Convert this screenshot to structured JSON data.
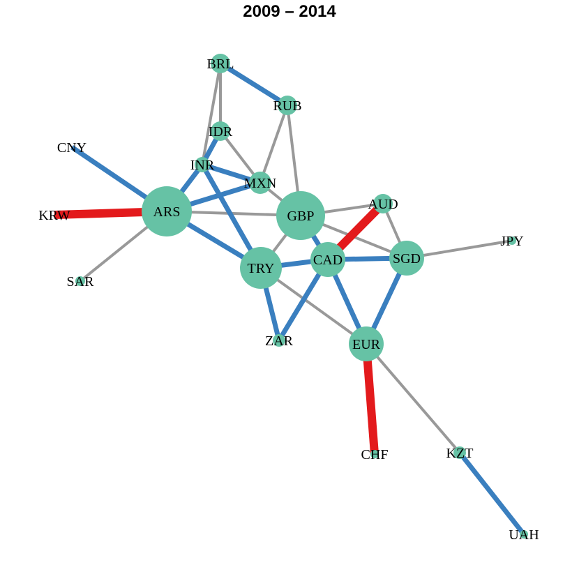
{
  "title": "2009 – 2014",
  "colors": {
    "node": "#66c2a5",
    "edge_neutral": "#999999",
    "edge_blue": "#3a7fbf",
    "edge_red": "#e31a1c",
    "label": "#000000"
  },
  "nodes": [
    {
      "id": "BRL",
      "label": "BRL"
    },
    {
      "id": "RUB",
      "label": "RUB"
    },
    {
      "id": "IDR",
      "label": "IDR"
    },
    {
      "id": "CNY",
      "label": "CNY"
    },
    {
      "id": "INR",
      "label": "INR"
    },
    {
      "id": "MXN",
      "label": "MXN"
    },
    {
      "id": "KRW",
      "label": "KRW"
    },
    {
      "id": "ARS",
      "label": "ARS"
    },
    {
      "id": "GBP",
      "label": "GBP"
    },
    {
      "id": "AUD",
      "label": "AUD"
    },
    {
      "id": "JPY",
      "label": "JPY"
    },
    {
      "id": "SAR",
      "label": "SAR"
    },
    {
      "id": "TRY",
      "label": "TRY"
    },
    {
      "id": "CAD",
      "label": "CAD"
    },
    {
      "id": "SGD",
      "label": "SGD"
    },
    {
      "id": "ZAR",
      "label": "ZAR"
    },
    {
      "id": "EUR",
      "label": "EUR"
    },
    {
      "id": "CHF",
      "label": "CHF"
    },
    {
      "id": "KZT",
      "label": "KZT"
    },
    {
      "id": "UAH",
      "label": "UAH"
    }
  ],
  "edges": [
    {
      "source": "BRL",
      "target": "RUB",
      "type": "blue"
    },
    {
      "source": "BRL",
      "target": "IDR",
      "type": "neutral"
    },
    {
      "source": "BRL",
      "target": "INR",
      "type": "neutral"
    },
    {
      "source": "RUB",
      "target": "MXN",
      "type": "neutral"
    },
    {
      "source": "RUB",
      "target": "GBP",
      "type": "neutral"
    },
    {
      "source": "IDR",
      "target": "INR",
      "type": "blue"
    },
    {
      "source": "IDR",
      "target": "MXN",
      "type": "neutral"
    },
    {
      "source": "INR",
      "target": "MXN",
      "type": "blue"
    },
    {
      "source": "INR",
      "target": "ARS",
      "type": "blue"
    },
    {
      "source": "INR",
      "target": "TRY",
      "type": "blue"
    },
    {
      "source": "MXN",
      "target": "ARS",
      "type": "blue"
    },
    {
      "source": "MXN",
      "target": "GBP",
      "type": "neutral"
    },
    {
      "source": "CNY",
      "target": "ARS",
      "type": "blue"
    },
    {
      "source": "KRW",
      "target": "ARS",
      "type": "red"
    },
    {
      "source": "SAR",
      "target": "ARS",
      "type": "neutral"
    },
    {
      "source": "ARS",
      "target": "GBP",
      "type": "neutral"
    },
    {
      "source": "ARS",
      "target": "TRY",
      "type": "blue"
    },
    {
      "source": "GBP",
      "target": "AUD",
      "type": "neutral"
    },
    {
      "source": "GBP",
      "target": "TRY",
      "type": "neutral"
    },
    {
      "source": "GBP",
      "target": "CAD",
      "type": "blue"
    },
    {
      "source": "GBP",
      "target": "SGD",
      "type": "neutral"
    },
    {
      "source": "AUD",
      "target": "CAD",
      "type": "red"
    },
    {
      "source": "AUD",
      "target": "SGD",
      "type": "neutral"
    },
    {
      "source": "JPY",
      "target": "SGD",
      "type": "neutral"
    },
    {
      "source": "TRY",
      "target": "CAD",
      "type": "blue"
    },
    {
      "source": "TRY",
      "target": "ZAR",
      "type": "blue"
    },
    {
      "source": "TRY",
      "target": "EUR",
      "type": "neutral"
    },
    {
      "source": "CAD",
      "target": "SGD",
      "type": "blue"
    },
    {
      "source": "CAD",
      "target": "ZAR",
      "type": "blue"
    },
    {
      "source": "CAD",
      "target": "EUR",
      "type": "blue"
    },
    {
      "source": "SGD",
      "target": "EUR",
      "type": "blue"
    },
    {
      "source": "EUR",
      "target": "CHF",
      "type": "red"
    },
    {
      "source": "EUR",
      "target": "KZT",
      "type": "neutral"
    },
    {
      "source": "KZT",
      "target": "UAH",
      "type": "blue"
    }
  ]
}
